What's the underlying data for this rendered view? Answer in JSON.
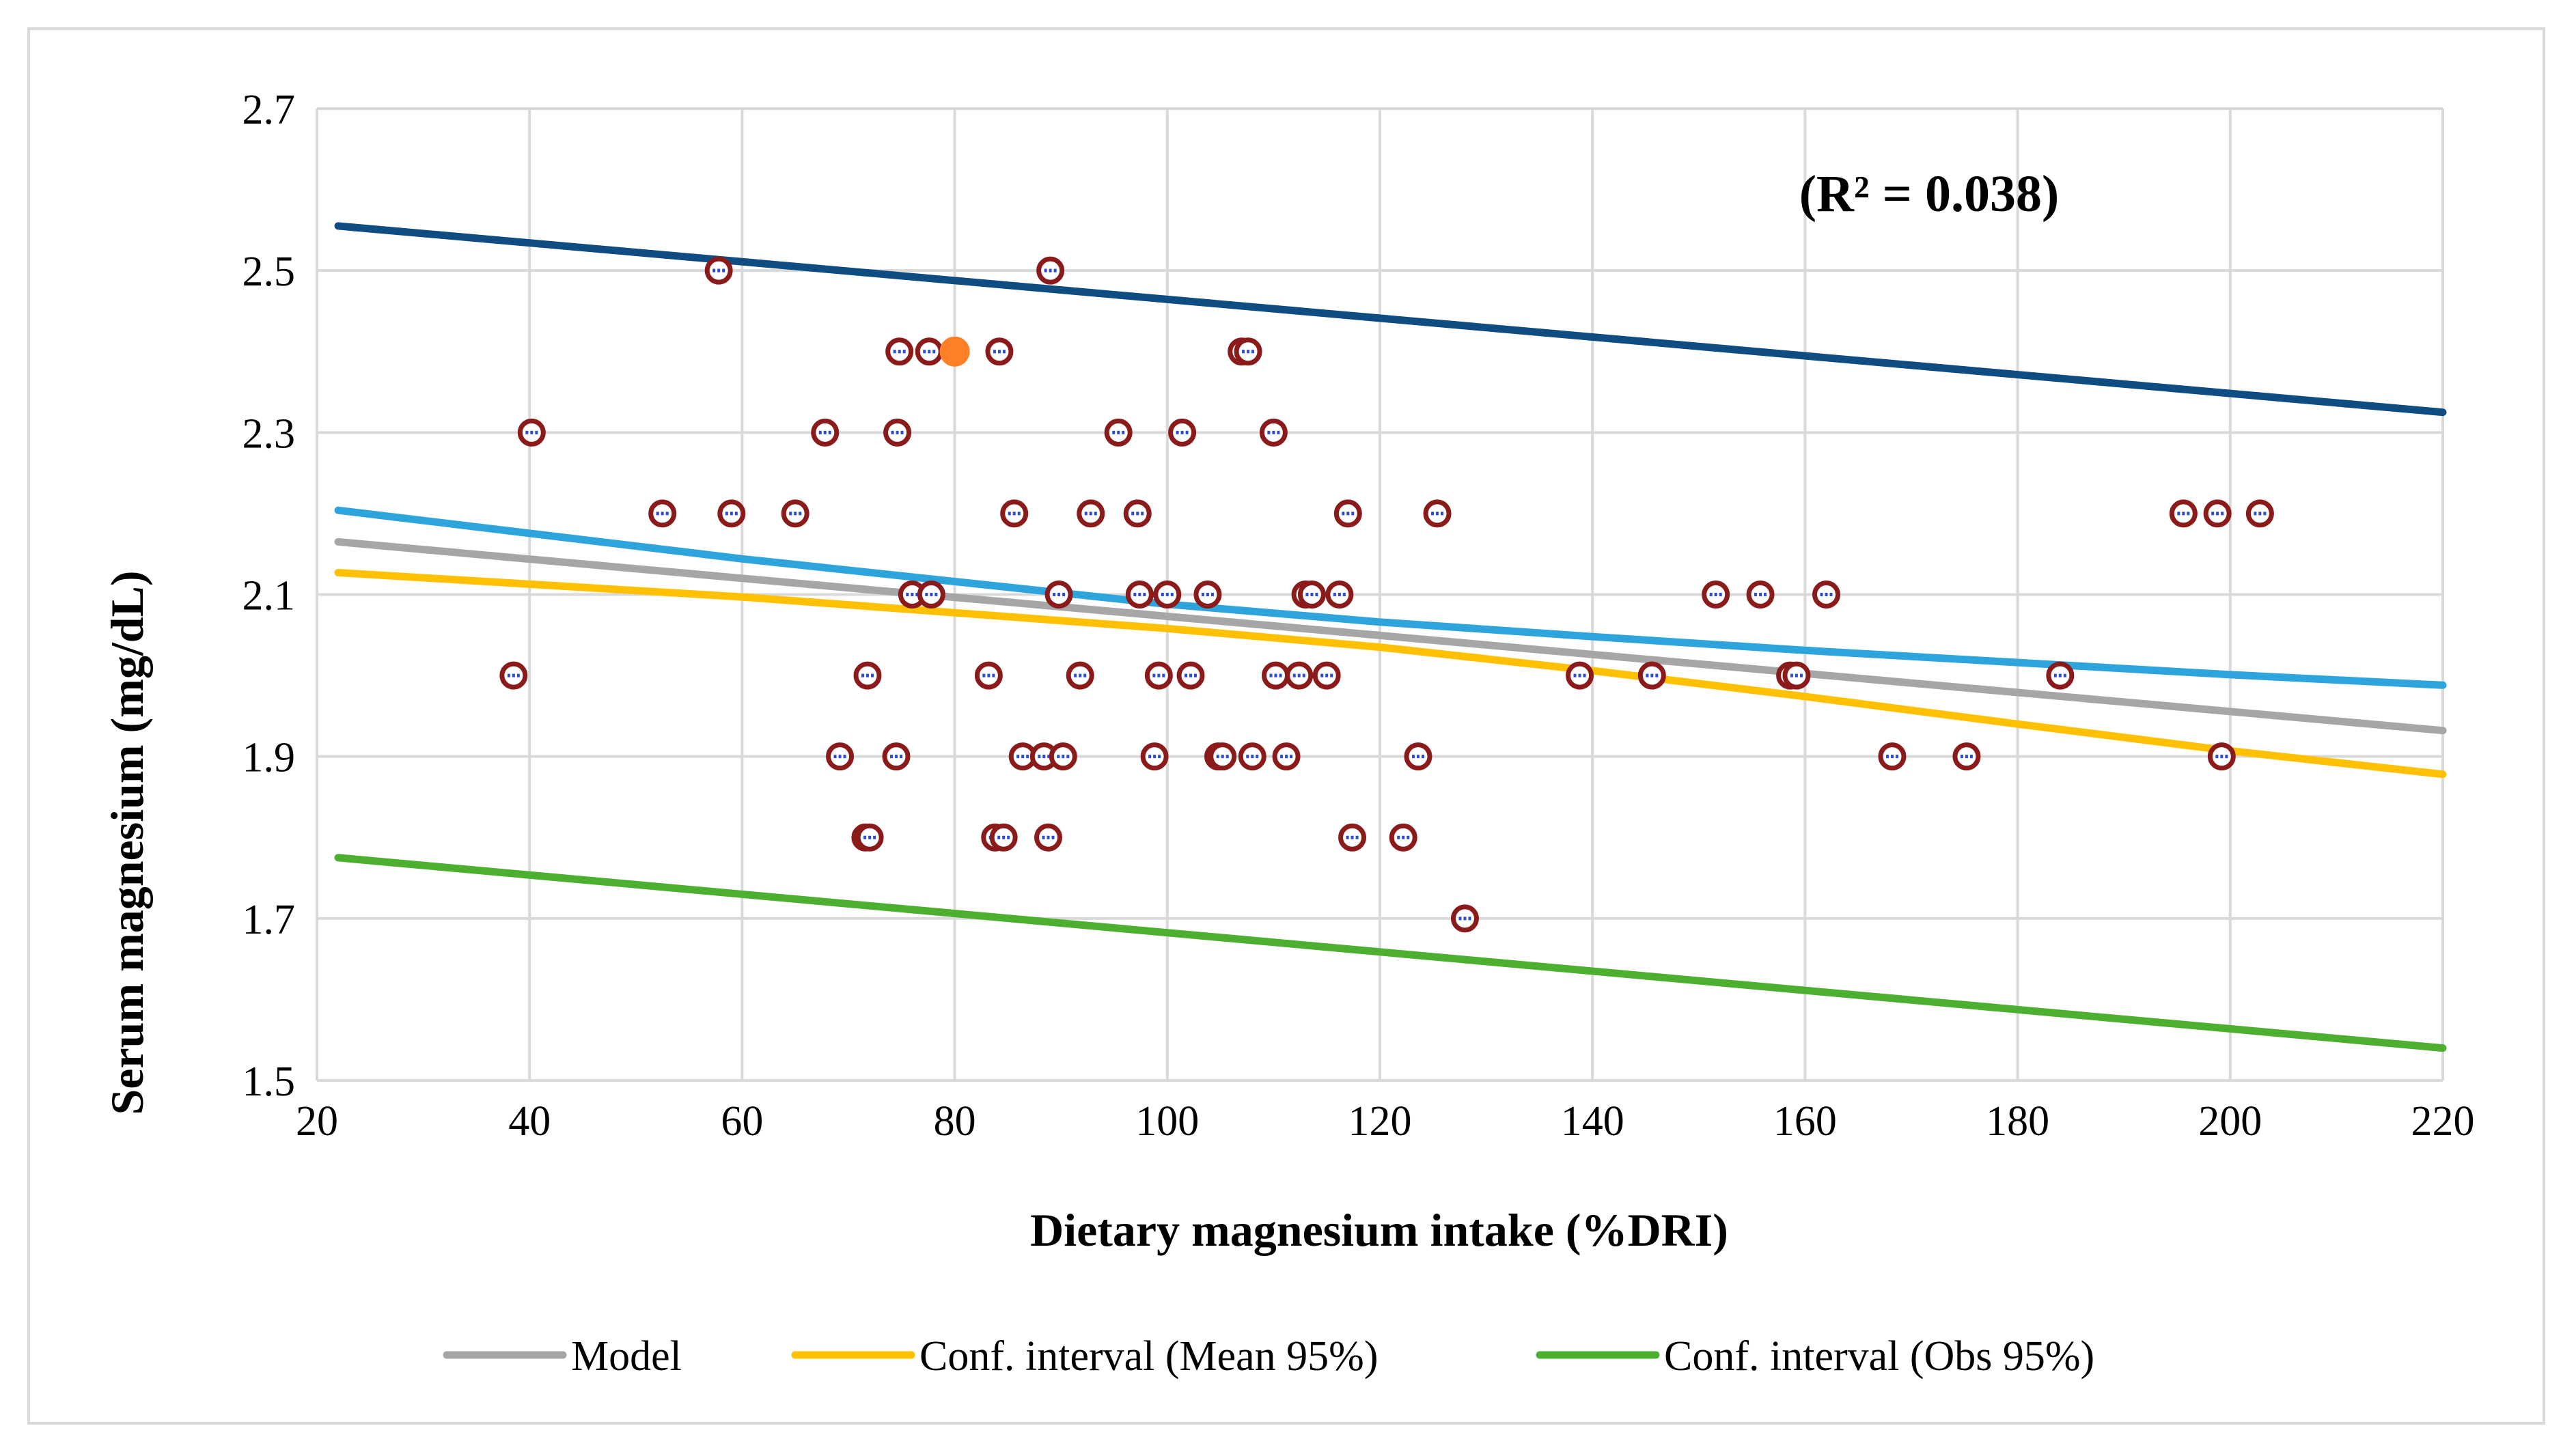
{
  "chart_data": {
    "type": "scatter",
    "title": "",
    "xlabel": "Dietary magnesium intake (%DRI)",
    "ylabel": "Serum magnesium (mg/dL)",
    "xlim": [
      20,
      220
    ],
    "ylim": [
      1.5,
      2.7
    ],
    "xticks": [
      20,
      40,
      60,
      80,
      100,
      120,
      140,
      160,
      180,
      200,
      220
    ],
    "yticks": [
      1.5,
      1.7,
      1.9,
      2.1,
      2.3,
      2.5,
      2.7
    ],
    "ytick_labels": [
      "1.5",
      "1.7",
      "1.9",
      "2.1",
      "2.3",
      "2.5",
      "2.7"
    ],
    "grid": true,
    "annotation": "(R² = 0.038)",
    "points": [
      {
        "x": 38.5,
        "y": 2.0
      },
      {
        "x": 40.2,
        "y": 2.3
      },
      {
        "x": 52.5,
        "y": 2.2
      },
      {
        "x": 57.8,
        "y": 2.5
      },
      {
        "x": 59.0,
        "y": 2.2
      },
      {
        "x": 65.0,
        "y": 2.2
      },
      {
        "x": 67.8,
        "y": 2.3
      },
      {
        "x": 69.2,
        "y": 1.9
      },
      {
        "x": 71.6,
        "y": 1.8
      },
      {
        "x": 72.0,
        "y": 1.8
      },
      {
        "x": 71.8,
        "y": 2.0
      },
      {
        "x": 74.5,
        "y": 1.9
      },
      {
        "x": 74.6,
        "y": 2.3
      },
      {
        "x": 74.8,
        "y": 2.4
      },
      {
        "x": 76.0,
        "y": 2.1
      },
      {
        "x": 77.6,
        "y": 2.4
      },
      {
        "x": 77.8,
        "y": 2.1
      },
      {
        "x": 83.2,
        "y": 2.0
      },
      {
        "x": 83.8,
        "y": 1.8
      },
      {
        "x": 84.6,
        "y": 1.8
      },
      {
        "x": 84.2,
        "y": 2.4
      },
      {
        "x": 85.6,
        "y": 2.2
      },
      {
        "x": 86.4,
        "y": 1.9
      },
      {
        "x": 88.4,
        "y": 1.9
      },
      {
        "x": 88.8,
        "y": 1.8
      },
      {
        "x": 89.0,
        "y": 2.5
      },
      {
        "x": 89.8,
        "y": 2.1
      },
      {
        "x": 90.2,
        "y": 1.9
      },
      {
        "x": 91.8,
        "y": 2.0
      },
      {
        "x": 92.8,
        "y": 2.2
      },
      {
        "x": 95.4,
        "y": 2.3
      },
      {
        "x": 97.2,
        "y": 2.2
      },
      {
        "x": 97.4,
        "y": 2.1
      },
      {
        "x": 98.8,
        "y": 1.9
      },
      {
        "x": 99.2,
        "y": 2.0
      },
      {
        "x": 100.0,
        "y": 2.1
      },
      {
        "x": 101.4,
        "y": 2.3
      },
      {
        "x": 102.2,
        "y": 2.0
      },
      {
        "x": 103.8,
        "y": 2.1
      },
      {
        "x": 104.8,
        "y": 1.9
      },
      {
        "x": 105.2,
        "y": 1.9
      },
      {
        "x": 107.0,
        "y": 2.4
      },
      {
        "x": 107.6,
        "y": 2.4
      },
      {
        "x": 108.0,
        "y": 1.9
      },
      {
        "x": 110.0,
        "y": 2.3
      },
      {
        "x": 110.2,
        "y": 2.0
      },
      {
        "x": 111.2,
        "y": 1.9
      },
      {
        "x": 112.4,
        "y": 2.0
      },
      {
        "x": 113.0,
        "y": 2.1
      },
      {
        "x": 113.6,
        "y": 2.1
      },
      {
        "x": 115.0,
        "y": 2.0
      },
      {
        "x": 116.2,
        "y": 2.1
      },
      {
        "x": 117.0,
        "y": 2.2
      },
      {
        "x": 117.4,
        "y": 1.8
      },
      {
        "x": 122.2,
        "y": 1.8
      },
      {
        "x": 123.6,
        "y": 1.9
      },
      {
        "x": 125.4,
        "y": 2.2
      },
      {
        "x": 128.0,
        "y": 1.7
      },
      {
        "x": 138.8,
        "y": 2.0
      },
      {
        "x": 145.6,
        "y": 2.0
      },
      {
        "x": 151.6,
        "y": 2.1
      },
      {
        "x": 155.8,
        "y": 2.1
      },
      {
        "x": 158.6,
        "y": 2.0
      },
      {
        "x": 159.2,
        "y": 2.0
      },
      {
        "x": 162.0,
        "y": 2.1
      },
      {
        "x": 168.2,
        "y": 1.9
      },
      {
        "x": 175.2,
        "y": 1.9
      },
      {
        "x": 184.0,
        "y": 2.0
      },
      {
        "x": 195.6,
        "y": 2.2
      },
      {
        "x": 198.8,
        "y": 2.2
      },
      {
        "x": 199.2,
        "y": 1.9
      },
      {
        "x": 202.8,
        "y": 2.2
      }
    ],
    "highlight_point": {
      "x": 80.0,
      "y": 2.4
    },
    "series": [
      {
        "name": "Model",
        "color": "#a6a6a6",
        "x": [
          22,
          60,
          100,
          140,
          180,
          220
        ],
        "y": [
          2.165,
          2.12,
          2.073,
          2.026,
          1.979,
          1.932
        ]
      },
      {
        "name": "Conf. interval (Mean 95%)",
        "color": "#ffc000",
        "x": [
          22,
          60,
          100,
          120,
          140,
          160,
          180,
          200,
          220
        ],
        "y": [
          2.127,
          2.097,
          2.058,
          2.035,
          2.006,
          1.974,
          1.94,
          1.907,
          1.878
        ]
      },
      {
        "name": "Conf. interval (Mean 95%) upper",
        "color": "#2ea4dc",
        "x": [
          22,
          60,
          100,
          120,
          140,
          160,
          180,
          200,
          220
        ],
        "y": [
          2.204,
          2.144,
          2.088,
          2.066,
          2.048,
          2.031,
          2.016,
          2.001,
          1.988
        ]
      },
      {
        "name": "Conf. interval (Obs 95%)",
        "color": "#4caf2f",
        "x": [
          22,
          220
        ],
        "y": [
          1.775,
          1.54
        ]
      },
      {
        "name": "Conf. interval (Obs 95%) upper",
        "color": "#0f4c81",
        "x": [
          22,
          220
        ],
        "y": [
          2.555,
          2.325
        ]
      }
    ],
    "legend": {
      "position": "bottom",
      "entries": [
        {
          "label": "Model",
          "color": "#a6a6a6"
        },
        {
          "label": "Conf. interval (Mean 95%)",
          "color": "#ffc000"
        },
        {
          "label": "Conf. interval (Obs 95%)",
          "color": "#4caf2f"
        }
      ]
    },
    "marker_colors": {
      "ring": "#8b1a1a",
      "fill": "#ffffff",
      "dash": "#2c4bd4",
      "highlight": "#ff7f27"
    }
  }
}
